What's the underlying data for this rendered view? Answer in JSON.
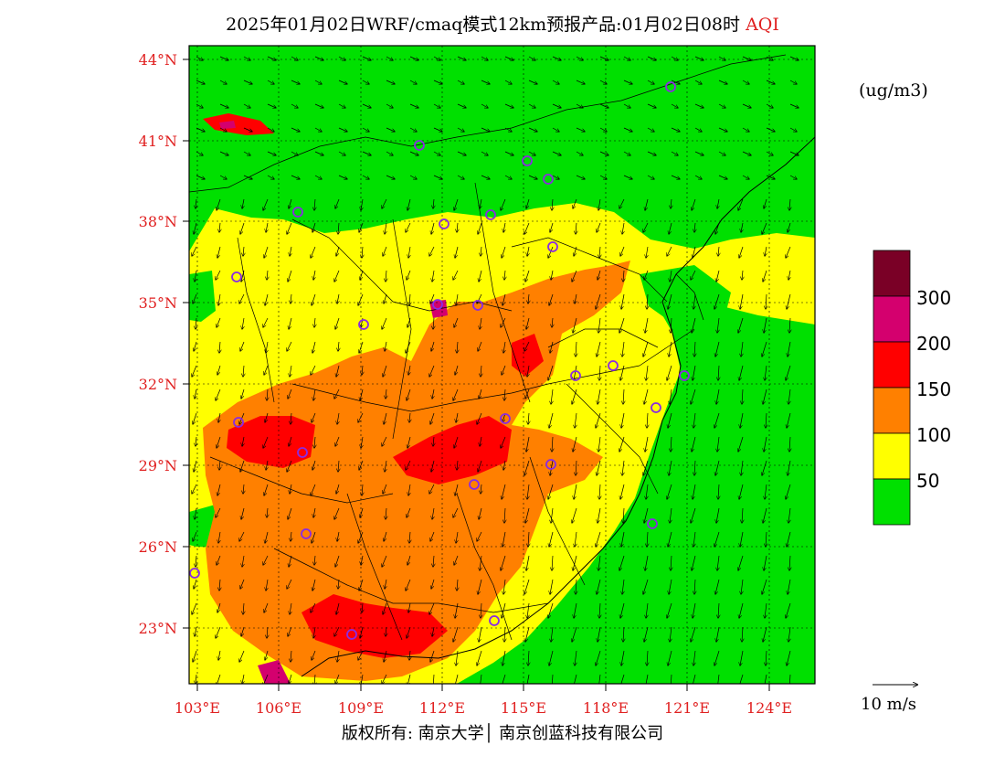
{
  "header": {
    "title": "2025年01月02日WRF/cmaq模式12km预报产品:01月02日08时",
    "title_highlight": "AQI"
  },
  "unit_label": "(ug/m3)",
  "axes": {
    "lat_labels": [
      "44°N",
      "41°N",
      "38°N",
      "35°N",
      "32°N",
      "29°N",
      "26°N",
      "23°N"
    ],
    "lon_labels": [
      "103°E",
      "106°E",
      "109°E",
      "112°E",
      "115°E",
      "118°E",
      "121°E",
      "124°E"
    ]
  },
  "legend": {
    "levels": [
      {
        "label": "",
        "color": "#7a0026"
      },
      {
        "label": "300",
        "color": "#d4006e"
      },
      {
        "label": "200",
        "color": "#ff0000"
      },
      {
        "label": "150",
        "color": "#ff8000"
      },
      {
        "label": "100",
        "color": "#ffff00"
      },
      {
        "label": "50",
        "color": "#00e000"
      }
    ]
  },
  "wind_scale_label": "10 m/s",
  "footer": {
    "copyright": "版权所有: 南京大学│ 南京创蓝科技有限公司"
  },
  "colors": {
    "good": "#00e000",
    "moderate": "#ffff00",
    "usg": "#ff8000",
    "unhealthy": "#ff0000",
    "very_unhealthy": "#d4006e",
    "hazardous": "#7a0026",
    "label_red": "#e02020",
    "station_marker": "#8a2be2"
  }
}
